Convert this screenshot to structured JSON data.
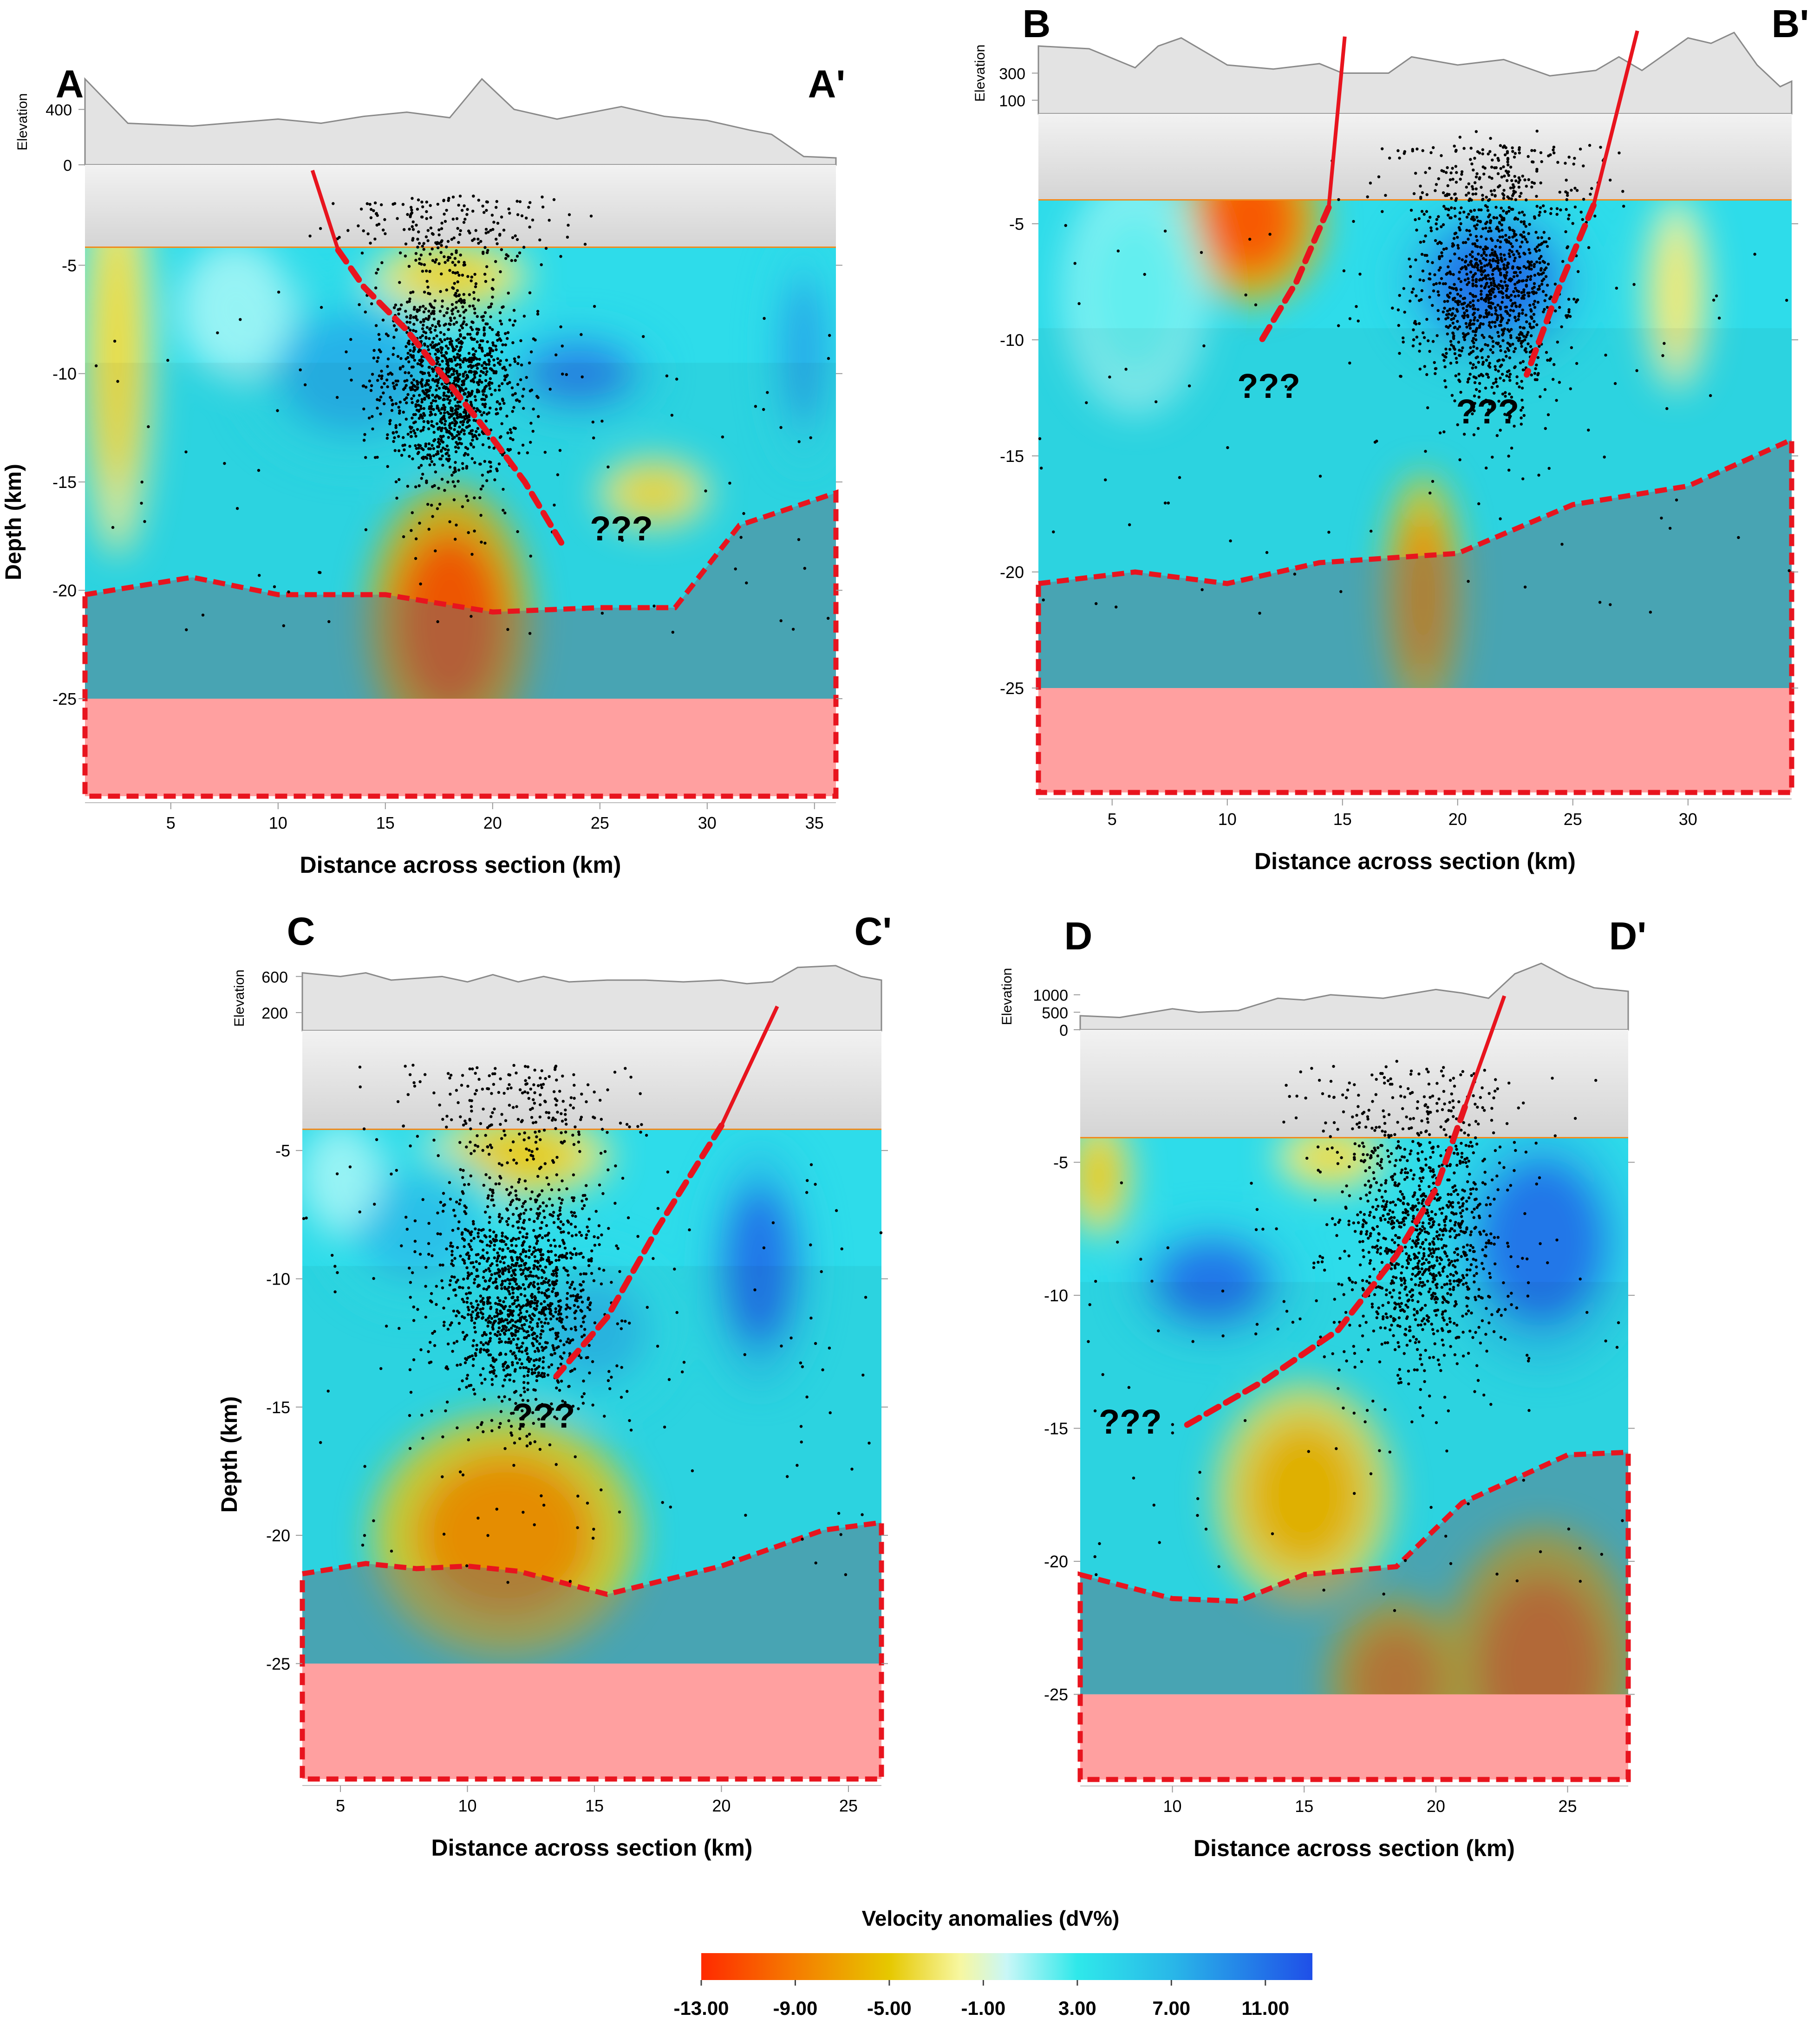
{
  "figure": {
    "colorbar": {
      "title": "Velocity anomalies (dV%)",
      "min": -13,
      "max": 13,
      "tick_labels": [
        "-13.00",
        "-9.00",
        "-5.00",
        "-1.00",
        "3.00",
        "7.00",
        "11.00"
      ],
      "tick_values": [
        -13,
        -9,
        -5,
        -1,
        3,
        7,
        11
      ],
      "stops": [
        {
          "value": -13,
          "color": "#ff2a00"
        },
        {
          "value": -9,
          "color": "#f57c00"
        },
        {
          "value": -5,
          "color": "#e6c800"
        },
        {
          "value": -2,
          "color": "#f7f7a0"
        },
        {
          "value": 0,
          "color": "#c9f7f7"
        },
        {
          "value": 3,
          "color": "#2fe8ea"
        },
        {
          "value": 7,
          "color": "#29b8e8"
        },
        {
          "value": 13,
          "color": "#1f4fe8"
        }
      ]
    }
  },
  "chart_data": [
    {
      "id": "A",
      "type": "heatmap",
      "title_left": "A",
      "title_right": "A'",
      "xlabel": "Distance across section (km)",
      "ylabel": "Depth (km)",
      "elevation_label": "Elevation",
      "elevation_ticks": [
        "400",
        "0"
      ],
      "elevation_tick_values": [
        400,
        0
      ],
      "xlim": [
        1,
        36
      ],
      "ylim": [
        -29.5,
        -4.2
      ],
      "xticks": [
        "5",
        "10",
        "15",
        "20",
        "25",
        "30",
        "35"
      ],
      "xtick_values": [
        5,
        10,
        15,
        20,
        25,
        30,
        35
      ],
      "yticks": [
        "-5",
        "-10",
        "-15",
        "-20",
        "-25"
      ],
      "ytick_values": [
        -5,
        -10,
        -15,
        -20,
        -25
      ],
      "base_value": 4,
      "anomalies": [
        {
          "x": 2.5,
          "depth": -9,
          "value": -4,
          "rx": 1.6,
          "ry": 9
        },
        {
          "x": 13.5,
          "depth": -10,
          "value": 7.5,
          "rx": 5,
          "ry": 4
        },
        {
          "x": 24,
          "depth": -10,
          "value": 10,
          "rx": 3.5,
          "ry": 2
        },
        {
          "x": 34.5,
          "depth": -9,
          "value": 8,
          "rx": 1.5,
          "ry": 5
        },
        {
          "x": 18,
          "depth": -5.5,
          "value": -4.5,
          "rx": 3.5,
          "ry": 1.6
        },
        {
          "x": 18,
          "depth": -21.5,
          "value": -11,
          "rx": 3.6,
          "ry": 6
        },
        {
          "x": 27.5,
          "depth": -15.5,
          "value": -4,
          "rx": 2.5,
          "ry": 1.6
        },
        {
          "x": 8,
          "depth": -7,
          "value": 1,
          "rx": 2.5,
          "ry": 3
        }
      ],
      "moho": [
        [
          1,
          -20.2
        ],
        [
          6,
          -19.4
        ],
        [
          10,
          -20.2
        ],
        [
          15,
          -20.2
        ],
        [
          20,
          -21.0
        ],
        [
          25,
          -20.8
        ],
        [
          28.5,
          -20.8
        ],
        [
          31.5,
          -17.0
        ],
        [
          36,
          -15.5
        ]
      ],
      "moho_label": "",
      "fault_solid": [
        [
          11.6,
          0
        ],
        [
          12.8,
          -4.3
        ]
      ],
      "fault_dashed": [
        [
          12.8,
          -4.3
        ],
        [
          14,
          -6
        ],
        [
          16,
          -8
        ],
        [
          18,
          -10.5
        ],
        [
          20,
          -13
        ],
        [
          21.5,
          -15
        ],
        [
          23.2,
          -17.8
        ]
      ],
      "question_marks": [
        {
          "x": 26,
          "depth": -17.7,
          "text": "???"
        }
      ],
      "elevation_profile": [
        [
          1,
          620
        ],
        [
          3,
          300
        ],
        [
          6,
          280
        ],
        [
          10,
          330
        ],
        [
          12,
          300
        ],
        [
          14,
          350
        ],
        [
          16,
          380
        ],
        [
          18,
          340
        ],
        [
          19.5,
          620
        ],
        [
          21,
          400
        ],
        [
          23,
          330
        ],
        [
          24,
          360
        ],
        [
          26,
          420
        ],
        [
          28,
          350
        ],
        [
          30,
          320
        ],
        [
          32,
          250
        ],
        [
          33,
          220
        ],
        [
          34.5,
          60
        ],
        [
          36,
          50
        ]
      ],
      "earthquakes": {
        "main_cx": 18,
        "main_cy": -10.5,
        "count": 1600,
        "seed": 11
      }
    },
    {
      "id": "B",
      "type": "heatmap",
      "title_left": "B",
      "title_right": "B'",
      "xlabel": "Distance across section (km)",
      "ylabel": "",
      "elevation_label": "Elevation",
      "elevation_ticks": [
        "300",
        "100"
      ],
      "elevation_tick_values": [
        300,
        100
      ],
      "xlim": [
        1.8,
        34.5
      ],
      "ylim": [
        -29.5,
        -4.0
      ],
      "xticks": [
        "5",
        "10",
        "15",
        "20",
        "25",
        "30"
      ],
      "xtick_values": [
        5,
        10,
        15,
        20,
        25,
        30
      ],
      "yticks": [
        "-5",
        "-10",
        "-15",
        "-20",
        "-25"
      ],
      "ytick_values": [
        -5,
        -10,
        -15,
        -20,
        -25
      ],
      "base_value": 4,
      "anomalies": [
        {
          "x": 11,
          "depth": -4.8,
          "value": -11,
          "rx": 3.0,
          "ry": 3.5
        },
        {
          "x": 21.5,
          "depth": -7.5,
          "value": 11,
          "rx": 4.0,
          "ry": 3.5
        },
        {
          "x": 18.5,
          "depth": -21,
          "value": -8,
          "rx": 1.6,
          "ry": 5
        },
        {
          "x": 29.5,
          "depth": -8,
          "value": -3,
          "rx": 1.3,
          "ry": 4
        },
        {
          "x": 6,
          "depth": -8,
          "value": 2,
          "rx": 3,
          "ry": 5
        }
      ],
      "moho": [
        [
          1.8,
          -20.5
        ],
        [
          6,
          -20
        ],
        [
          10,
          -20.5
        ],
        [
          14,
          -19.6
        ],
        [
          20,
          -19.2
        ],
        [
          25,
          -17.1
        ],
        [
          30,
          -16.3
        ],
        [
          34.5,
          -14.3
        ]
      ],
      "fault_solid": [
        [
          15.1,
          4.5
        ],
        [
          14.4,
          -4.3
        ]
      ],
      "fault_dashed": [
        [
          14.4,
          -4.3
        ],
        [
          13,
          -7.5
        ],
        [
          11.5,
          -10
        ]
      ],
      "fault2_solid": [
        [
          27.8,
          4.8
        ],
        [
          25.9,
          -4.2
        ]
      ],
      "fault2_dashed": [
        [
          25.9,
          -4.2
        ],
        [
          24.5,
          -7.5
        ],
        [
          23,
          -11.5
        ]
      ],
      "question_marks": [
        {
          "x": 11.8,
          "depth": -12.5,
          "text": "???"
        },
        {
          "x": 21.3,
          "depth": -13.6,
          "text": "???"
        }
      ],
      "elevation_profile": [
        [
          1.8,
          500
        ],
        [
          4,
          480
        ],
        [
          6,
          340
        ],
        [
          7,
          500
        ],
        [
          8,
          560
        ],
        [
          10,
          360
        ],
        [
          12,
          330
        ],
        [
          14,
          370
        ],
        [
          15,
          300
        ],
        [
          17,
          300
        ],
        [
          18,
          420
        ],
        [
          20,
          360
        ],
        [
          22,
          400
        ],
        [
          24,
          280
        ],
        [
          26,
          320
        ],
        [
          27,
          420
        ],
        [
          28,
          320
        ],
        [
          30,
          560
        ],
        [
          31,
          520
        ],
        [
          32,
          600
        ],
        [
          33,
          360
        ],
        [
          34,
          200
        ],
        [
          34.5,
          240
        ]
      ],
      "earthquakes": {
        "main_cx": 21.5,
        "main_cy": -8,
        "count": 1400,
        "seed": 23
      }
    },
    {
      "id": "C",
      "type": "heatmap",
      "title_left": "C",
      "title_right": "C'",
      "xlabel": "Distance across section (km)",
      "ylabel": "Depth (km)",
      "elevation_label": "Elevation",
      "elevation_ticks": [
        "600",
        "200"
      ],
      "elevation_tick_values": [
        600,
        200
      ],
      "xlim": [
        3.5,
        26.3
      ],
      "ylim": [
        -29.5,
        -4.2
      ],
      "xticks": [
        "5",
        "10",
        "15",
        "20",
        "25"
      ],
      "xtick_values": [
        5,
        10,
        15,
        20,
        25
      ],
      "yticks": [
        "-5",
        "-10",
        "-15",
        "-20",
        "-25"
      ],
      "ytick_values": [
        -5,
        -10,
        -15,
        -20,
        -25
      ],
      "base_value": 4,
      "anomalies": [
        {
          "x": 12,
          "depth": -5.2,
          "value": -5,
          "rx": 3.5,
          "ry": 1.6
        },
        {
          "x": 21.5,
          "depth": -9.5,
          "value": 11,
          "rx": 2.0,
          "ry": 4.5
        },
        {
          "x": 11.5,
          "depth": -20,
          "value": -8,
          "rx": 5,
          "ry": 4.5
        },
        {
          "x": 8,
          "depth": -8,
          "value": 6.5,
          "rx": 3.5,
          "ry": 3
        },
        {
          "x": 15,
          "depth": -12,
          "value": 7,
          "rx": 3,
          "ry": 3
        },
        {
          "x": 5,
          "depth": -6,
          "value": 1,
          "rx": 1.5,
          "ry": 2
        }
      ],
      "moho": [
        [
          3.5,
          -21.5
        ],
        [
          6,
          -21.1
        ],
        [
          8,
          -21.3
        ],
        [
          10,
          -21.2
        ],
        [
          12,
          -21.4
        ],
        [
          15.5,
          -22.3
        ],
        [
          20,
          -21.2
        ],
        [
          24,
          -19.8
        ],
        [
          26.3,
          -19.5
        ]
      ],
      "fault_solid": [
        [
          22.2,
          1.4
        ],
        [
          20.0,
          -4.0
        ]
      ],
      "fault_dashed": [
        [
          20.0,
          -4.0
        ],
        [
          17.5,
          -8
        ],
        [
          15.5,
          -11.5
        ],
        [
          13.5,
          -13.8
        ]
      ],
      "question_marks": [
        {
          "x": 13,
          "depth": -15.8,
          "text": "???"
        }
      ],
      "elevation_profile": [
        [
          3.5,
          640
        ],
        [
          5,
          600
        ],
        [
          6,
          640
        ],
        [
          7,
          560
        ],
        [
          9,
          600
        ],
        [
          10,
          540
        ],
        [
          11,
          620
        ],
        [
          12,
          540
        ],
        [
          13,
          600
        ],
        [
          14,
          540
        ],
        [
          15.5,
          560
        ],
        [
          17,
          560
        ],
        [
          18.5,
          540
        ],
        [
          20,
          560
        ],
        [
          21,
          520
        ],
        [
          22,
          540
        ],
        [
          23,
          700
        ],
        [
          24.5,
          720
        ],
        [
          25.5,
          600
        ],
        [
          26.3,
          560
        ]
      ],
      "earthquakes": {
        "main_cx": 12,
        "main_cy": -10.5,
        "count": 1700,
        "seed": 37
      }
    },
    {
      "id": "D",
      "type": "heatmap",
      "title_left": "D",
      "title_right": "D'",
      "xlabel": "Distance across section (km)",
      "ylabel": "",
      "elevation_label": "Elevation",
      "elevation_ticks": [
        "1000",
        "500",
        "0"
      ],
      "elevation_tick_values": [
        1000,
        500,
        0
      ],
      "xlim": [
        6.5,
        27.3
      ],
      "ylim": [
        -28.2,
        -4.1
      ],
      "xticks": [
        "10",
        "15",
        "20",
        "25"
      ],
      "xtick_values": [
        10,
        15,
        20,
        25
      ],
      "yticks": [
        "-5",
        "-10",
        "-15",
        "-20",
        "-25"
      ],
      "ytick_values": [
        -5,
        -10,
        -15,
        -20,
        -25
      ],
      "base_value": 4,
      "anomalies": [
        {
          "x": 7.2,
          "depth": -5.5,
          "value": -5,
          "rx": 1.2,
          "ry": 2.2
        },
        {
          "x": 16,
          "depth": -4.8,
          "value": -4,
          "rx": 2.0,
          "ry": 1.2
        },
        {
          "x": 11.5,
          "depth": -9.5,
          "value": 11,
          "rx": 3.0,
          "ry": 2.2
        },
        {
          "x": 24,
          "depth": -8,
          "value": 11,
          "rx": 3.5,
          "ry": 4.5
        },
        {
          "x": 15,
          "depth": -17.5,
          "value": -6,
          "rx": 3.2,
          "ry": 4
        },
        {
          "x": 24,
          "depth": -24,
          "value": -10,
          "rx": 3.5,
          "ry": 5
        },
        {
          "x": 18.5,
          "depth": -24.5,
          "value": -9,
          "rx": 2.5,
          "ry": 3
        }
      ],
      "moho": [
        [
          6.5,
          -20.5
        ],
        [
          10,
          -21.4
        ],
        [
          12.5,
          -21.5
        ],
        [
          15,
          -20.5
        ],
        [
          18.5,
          -20.2
        ],
        [
          21,
          -17.8
        ],
        [
          25,
          -16.0
        ],
        [
          27.3,
          -15.9
        ]
      ],
      "fault_solid": [
        [
          22.6,
          1.8
        ],
        [
          21.1,
          -2.8
        ]
      ],
      "fault_dashed": [
        [
          21.1,
          -2.8
        ],
        [
          20,
          -6
        ],
        [
          18.5,
          -8.5
        ],
        [
          16.3,
          -11.3
        ],
        [
          13.5,
          -13.2
        ],
        [
          10.5,
          -14.9
        ]
      ],
      "question_marks": [
        {
          "x": 8.4,
          "depth": -15.2,
          "text": "???"
        }
      ],
      "elevation_profile": [
        [
          6.5,
          400
        ],
        [
          8,
          350
        ],
        [
          10,
          600
        ],
        [
          11,
          500
        ],
        [
          12.5,
          550
        ],
        [
          14,
          900
        ],
        [
          15,
          850
        ],
        [
          16,
          1000
        ],
        [
          18,
          900
        ],
        [
          20,
          1150
        ],
        [
          21,
          1050
        ],
        [
          22,
          900
        ],
        [
          23,
          1600
        ],
        [
          24,
          1900
        ],
        [
          25,
          1500
        ],
        [
          26,
          1200
        ],
        [
          27.3,
          1100
        ]
      ],
      "earthquakes": {
        "main_cx": 19.5,
        "main_cy": -8.2,
        "count": 1300,
        "seed": 53
      }
    }
  ]
}
